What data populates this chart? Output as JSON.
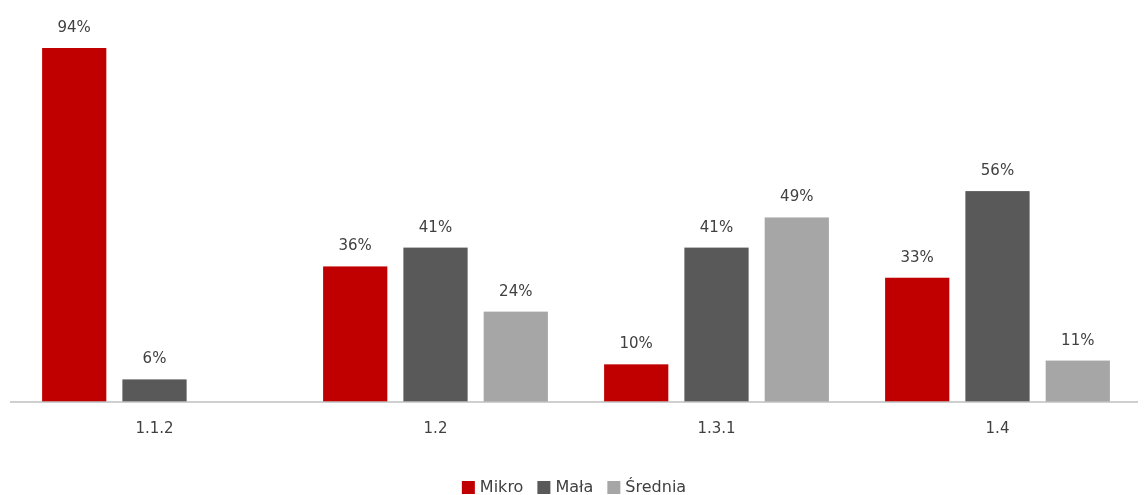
{
  "chart_data": {
    "type": "bar",
    "categories": [
      "1.1.2",
      "1.2",
      "1.3.1",
      "1.4"
    ],
    "series": [
      {
        "name": "Mikro",
        "color": "#c00000",
        "values": [
          94,
          36,
          10,
          33
        ],
        "value_labels": [
          "94%",
          "36%",
          "10%",
          "33%"
        ]
      },
      {
        "name": "Mała",
        "color": "#595959",
        "values": [
          6,
          41,
          41,
          56
        ],
        "value_labels": [
          "6%",
          "41%",
          "41%",
          "56%"
        ]
      },
      {
        "name": "Średnia",
        "color": "#a6a6a6",
        "values": [
          null,
          24,
          49,
          11
        ],
        "value_labels": [
          null,
          "24%",
          "49%",
          "11%"
        ]
      }
    ],
    "tick_labels": "x",
    "legend": "bottom"
  }
}
